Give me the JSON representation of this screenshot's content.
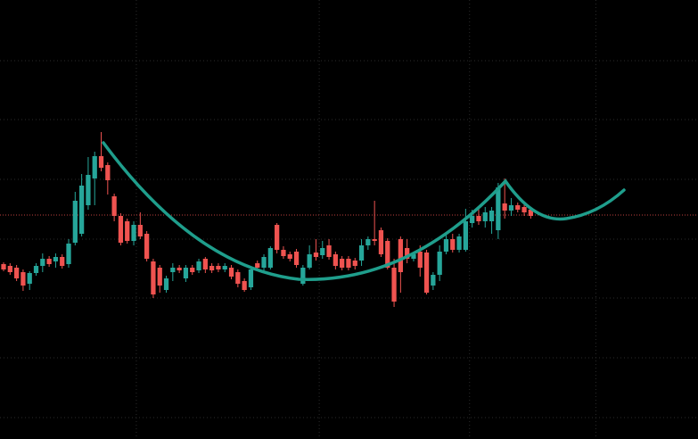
{
  "chart_data": {
    "type": "candlestick",
    "x": [
      0,
      1,
      2,
      3,
      4,
      5,
      6,
      7,
      8,
      9,
      10,
      11,
      12,
      13,
      14,
      15,
      16,
      17,
      18,
      19,
      20,
      21,
      22,
      23,
      24,
      25,
      26,
      27,
      28,
      29,
      30,
      31,
      32,
      33,
      34,
      35,
      36,
      37,
      38,
      39,
      40,
      41,
      42,
      43,
      44,
      45,
      46,
      47,
      48,
      49,
      50,
      51,
      52,
      53,
      54,
      55,
      56,
      57,
      58,
      59,
      60,
      61,
      62,
      63,
      64,
      65,
      66,
      67,
      68,
      69,
      70,
      71,
      72,
      73,
      74,
      75,
      76,
      77,
      78,
      79,
      80,
      81
    ],
    "open": [
      196,
      194,
      192,
      187,
      174,
      186,
      194,
      202,
      199,
      204,
      196,
      220,
      230,
      262,
      292,
      317,
      307,
      272,
      250,
      244,
      222,
      240,
      230,
      199,
      192,
      167,
      187,
      192,
      180,
      192,
      189,
      202,
      194,
      194,
      190,
      192,
      187,
      177,
      170,
      197,
      192,
      192,
      240,
      212,
      207,
      210,
      174,
      192,
      209,
      206,
      217,
      207,
      202,
      202,
      200,
      200,
      217,
      224,
      234,
      222,
      192,
      224,
      214,
      202,
      210,
      209,
      172,
      184,
      210,
      224,
      212,
      212,
      242,
      250,
      244,
      244,
      234,
      264,
      256,
      262,
      260,
      257
    ],
    "high": [
      198,
      197,
      195,
      190,
      188,
      197,
      208,
      205,
      208,
      207,
      224,
      277,
      297,
      316,
      322,
      344,
      310,
      275,
      253,
      247,
      244,
      254,
      233,
      202,
      195,
      183,
      197,
      195,
      195,
      195,
      202,
      204,
      197,
      197,
      197,
      195,
      190,
      180,
      193,
      200,
      207,
      216,
      242,
      216,
      210,
      213,
      195,
      217,
      224,
      222,
      224,
      210,
      205,
      205,
      203,
      224,
      227,
      267,
      237,
      225,
      202,
      227,
      224,
      210,
      217,
      212,
      187,
      217,
      232,
      230,
      230,
      258,
      257,
      260,
      260,
      260,
      287,
      292,
      270,
      265,
      264,
      260
    ],
    "low": [
      188,
      184,
      177,
      166,
      167,
      183,
      187,
      193,
      192,
      191,
      192,
      217,
      227,
      257,
      262,
      300,
      274,
      244,
      217,
      219,
      217,
      224,
      199,
      158,
      164,
      164,
      177,
      186,
      176,
      184,
      186,
      186,
      186,
      187,
      187,
      179,
      170,
      165,
      167,
      189,
      189,
      190,
      208,
      202,
      199,
      192,
      172,
      190,
      200,
      202,
      201,
      190,
      189,
      189,
      190,
      194,
      212,
      217,
      204,
      190,
      148,
      164,
      197,
      199,
      182,
      162,
      167,
      177,
      207,
      209,
      209,
      210,
      237,
      240,
      237,
      230,
      224,
      247,
      250,
      254,
      250,
      247
    ],
    "close": [
      190,
      187,
      180,
      172,
      186,
      194,
      202,
      196,
      204,
      194,
      219,
      267,
      284,
      296,
      317,
      304,
      290,
      250,
      220,
      222,
      240,
      227,
      202,
      162,
      172,
      180,
      192,
      189,
      192,
      187,
      199,
      190,
      189,
      190,
      194,
      182,
      174,
      167,
      190,
      192,
      204,
      214,
      212,
      205,
      202,
      195,
      192,
      207,
      204,
      214,
      204,
      194,
      192,
      192,
      194,
      217,
      224,
      222,
      207,
      192,
      154,
      187,
      202,
      207,
      192,
      164,
      184,
      210,
      224,
      212,
      227,
      244,
      250,
      244,
      254,
      256,
      282,
      256,
      262,
      257,
      254,
      250
    ],
    "up_color": "#26a69a",
    "down_color": "#ef5350",
    "price_line": {
      "value": 251,
      "color": "#ef5350"
    },
    "xlim": [
      -0.55,
      106.7
    ],
    "ylim": [
      0,
      492
    ],
    "xticks": [
      20.4,
      48.5,
      71.6,
      91
    ],
    "yticks": [
      24,
      91,
      158,
      224,
      291,
      358,
      424
    ],
    "grid": true
  }
}
